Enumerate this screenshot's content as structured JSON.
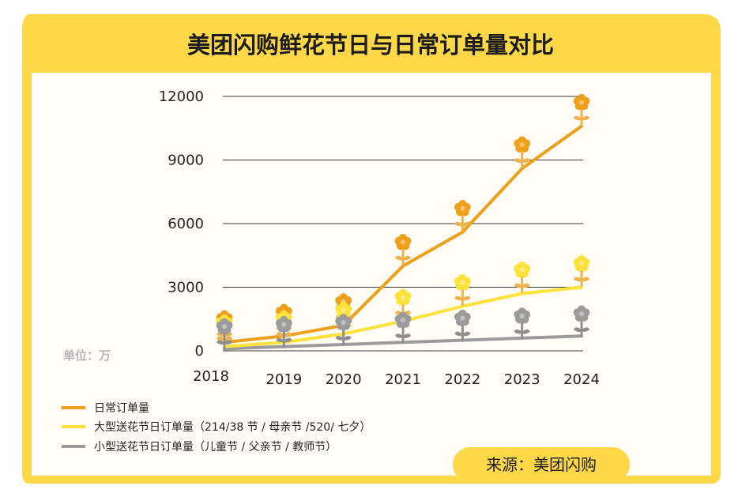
{
  "title": "美团闪购鲜花节日与日常订单量对比",
  "unit_label": "单位：万",
  "source_label": "来源：美团闪购",
  "colors": {
    "frame_yellow": "#FFD84A",
    "panel_bg": "#FFFDF5",
    "daily": "#EFA01B",
    "large_festival": "#FFE23A",
    "small_festival": "#9B9B9B",
    "grid": "#3C3C3C",
    "flower_stem": "#F0B24C"
  },
  "chart_data": {
    "type": "line",
    "title": "美团闪购鲜花节日与日常订单量对比",
    "xlabel": "",
    "ylabel": "单位：万",
    "ylim": [
      0,
      12000
    ],
    "yticks": [
      0,
      3000,
      6000,
      9000,
      12000
    ],
    "grid": true,
    "legend_position": "bottom-left",
    "categories": [
      "2018",
      "2019",
      "2020",
      "2021",
      "2022",
      "2023",
      "2024"
    ],
    "series": [
      {
        "name": "日常订单量",
        "color": "#EFA01B",
        "values": [
          400,
          700,
          1200,
          4000,
          5600,
          8600,
          10600
        ]
      },
      {
        "name": "大型送花节日订单量（214/38 节 / 母亲节 /520/ 七夕）",
        "color": "#FFE23A",
        "values": [
          200,
          400,
          800,
          1400,
          2100,
          2700,
          3000
        ]
      },
      {
        "name": "小型送花节日订单量（儿童节 / 父亲节 / 教师节）",
        "color": "#9B9B9B",
        "values": [
          100,
          200,
          300,
          400,
          500,
          600,
          700
        ]
      }
    ]
  }
}
